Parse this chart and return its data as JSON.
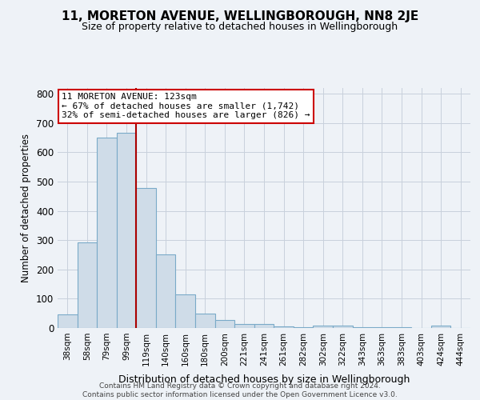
{
  "title": "11, MORETON AVENUE, WELLINGBOROUGH, NN8 2JE",
  "subtitle": "Size of property relative to detached houses in Wellingborough",
  "xlabel": "Distribution of detached houses by size in Wellingborough",
  "ylabel": "Number of detached properties",
  "bar_labels": [
    "38sqm",
    "58sqm",
    "79sqm",
    "99sqm",
    "119sqm",
    "140sqm",
    "160sqm",
    "180sqm",
    "200sqm",
    "221sqm",
    "241sqm",
    "261sqm",
    "282sqm",
    "302sqm",
    "322sqm",
    "343sqm",
    "363sqm",
    "383sqm",
    "403sqm",
    "424sqm",
    "444sqm"
  ],
  "bar_values": [
    47,
    293,
    651,
    668,
    478,
    251,
    115,
    50,
    28,
    15,
    14,
    6,
    4,
    9,
    9,
    4,
    4,
    3,
    1,
    8,
    1
  ],
  "bar_color": "#cfdce8",
  "bar_edge_color": "#7aaac8",
  "ylim": [
    0,
    820
  ],
  "yticks": [
    0,
    100,
    200,
    300,
    400,
    500,
    600,
    700,
    800
  ],
  "vline_index": 4,
  "vline_color": "#aa0000",
  "annotation_line1": "11 MORETON AVENUE: 123sqm",
  "annotation_line2": "← 67% of detached houses are smaller (1,742)",
  "annotation_line3": "32% of semi-detached houses are larger (826) →",
  "annotation_box_color": "#ffffff",
  "annotation_box_edge_color": "#cc0000",
  "footer_text": "Contains HM Land Registry data © Crown copyright and database right 2024.\nContains public sector information licensed under the Open Government Licence v3.0.",
  "bg_color": "#eef2f7",
  "plot_bg_color": "#eef2f7",
  "grid_color": "#c8d0dc",
  "title_fontsize": 11,
  "subtitle_fontsize": 9,
  "xlabel_fontsize": 9,
  "ylabel_fontsize": 8.5,
  "xtick_fontsize": 7.5,
  "ytick_fontsize": 8.5,
  "annotation_fontsize": 8
}
